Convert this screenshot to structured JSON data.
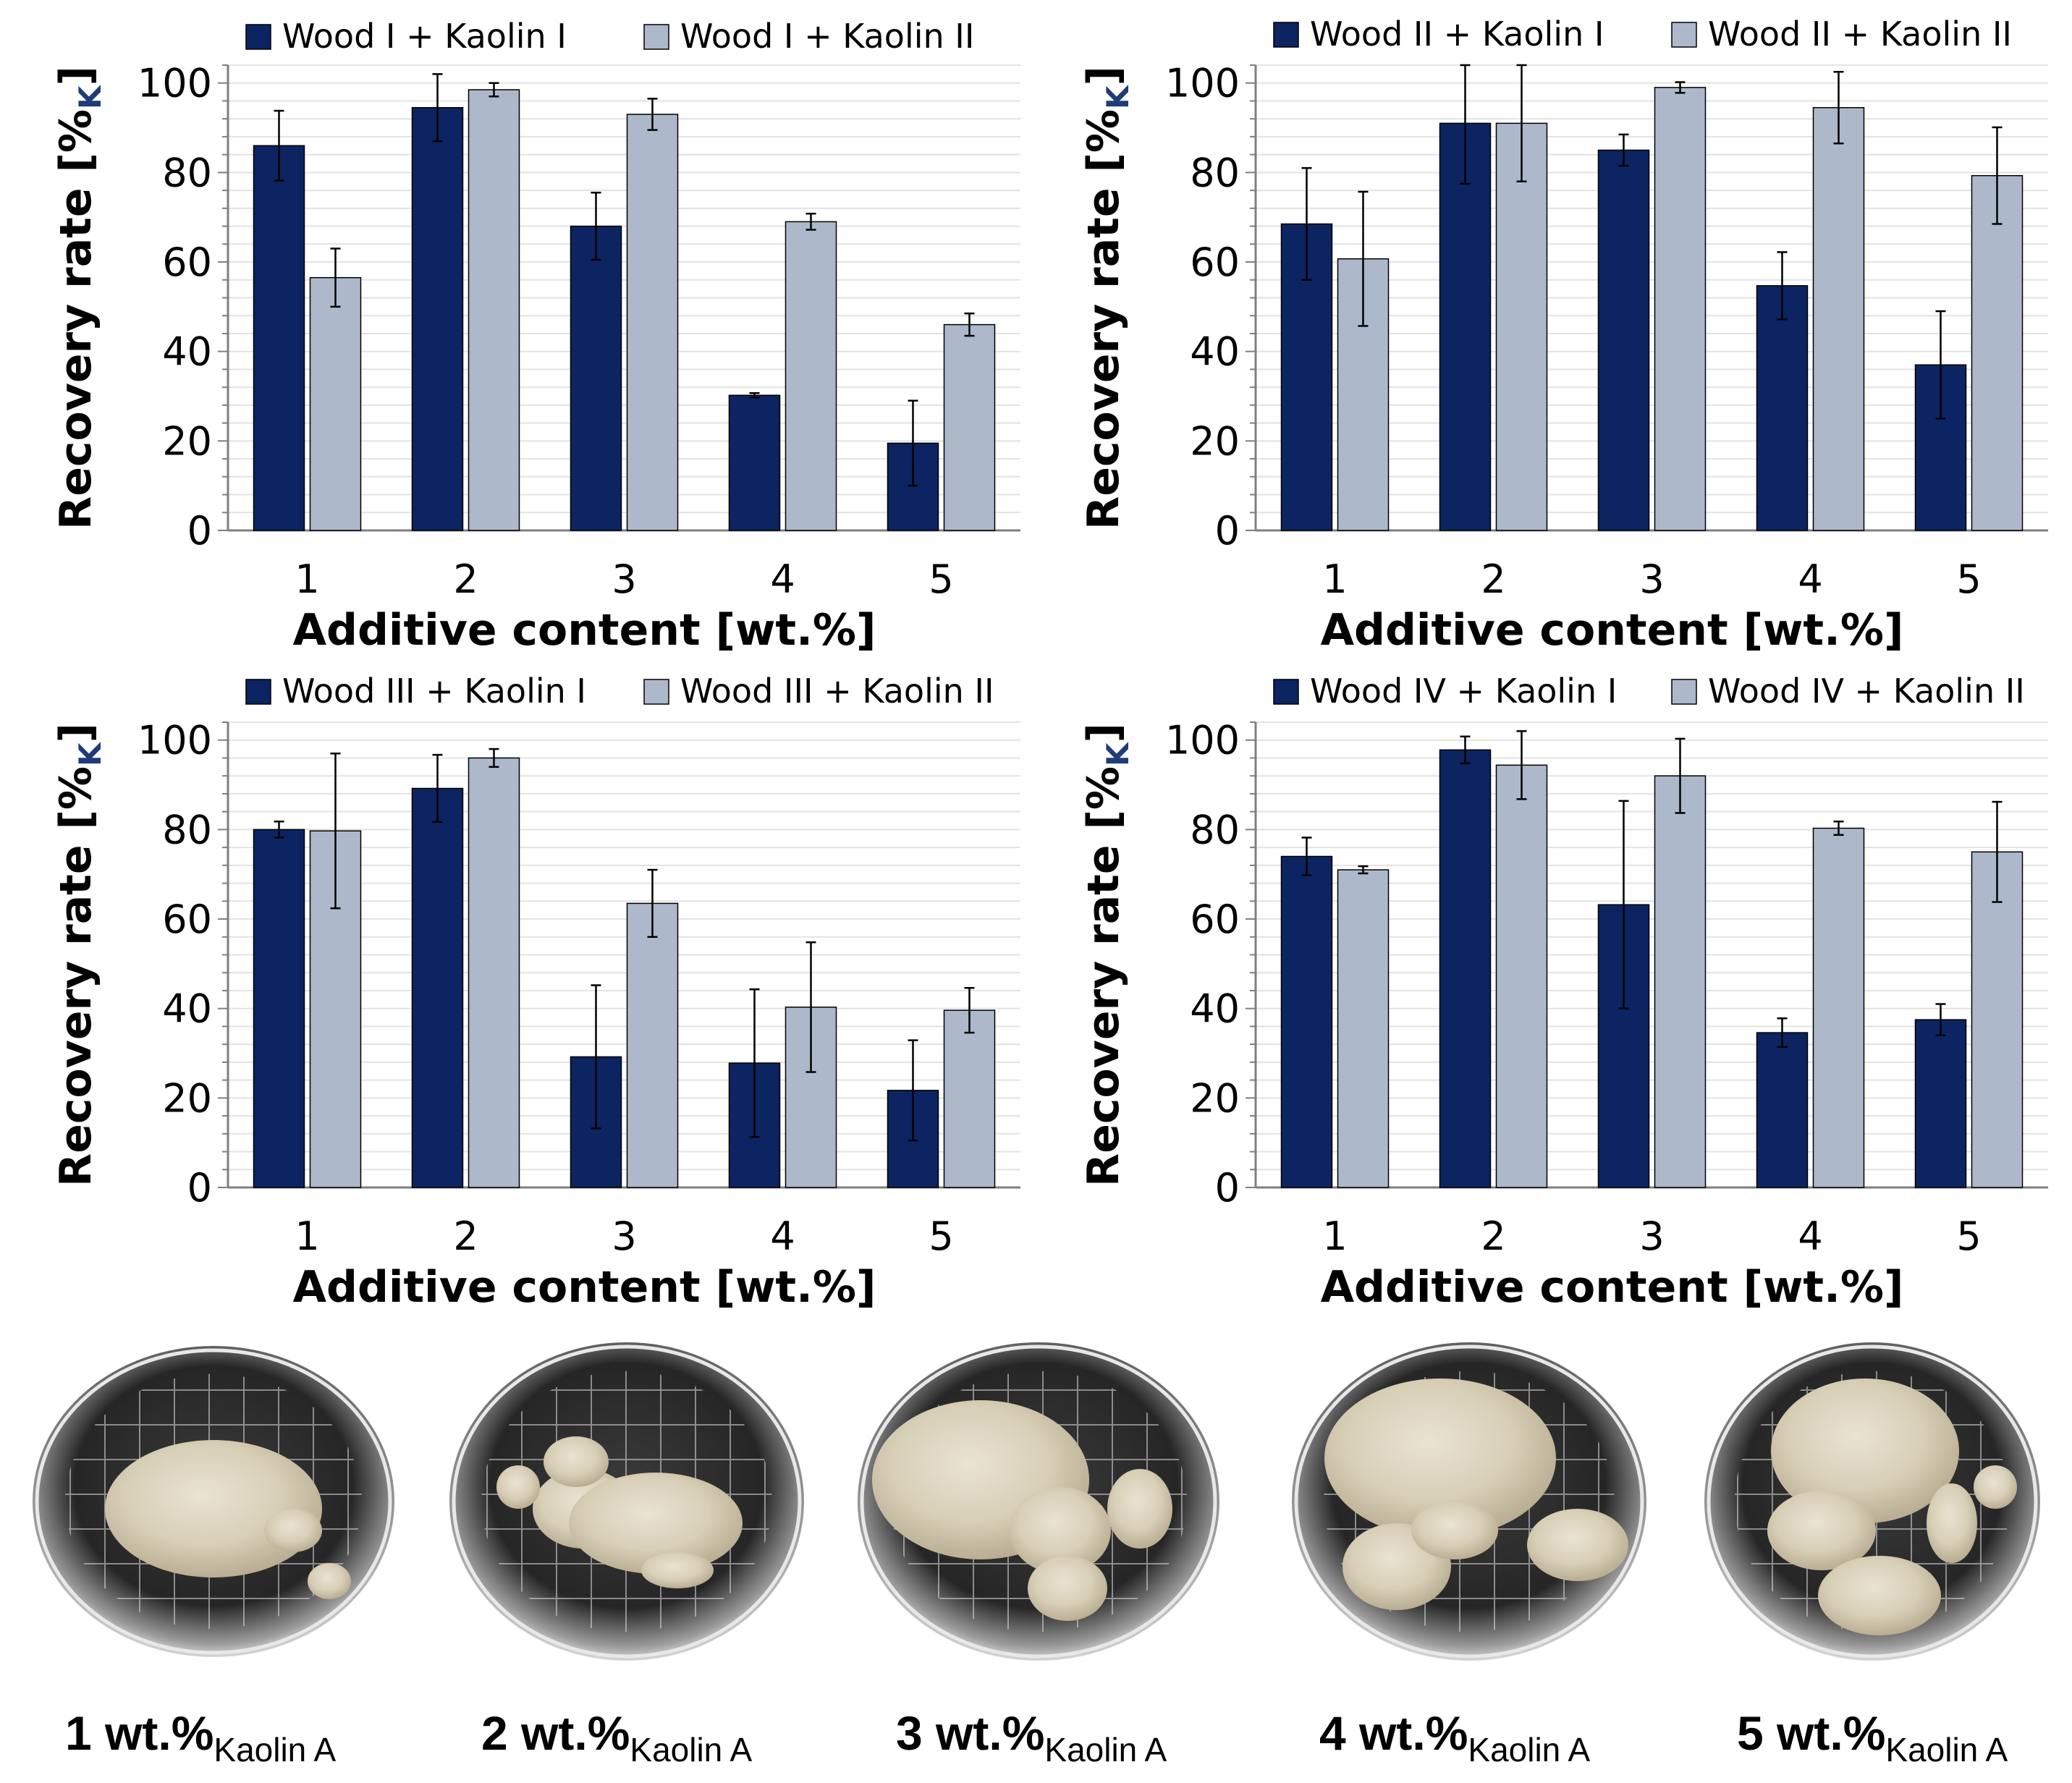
{
  "colors": {
    "series1": "#0c2461",
    "series2": "#adb9cb",
    "grid": "#e3e3e3",
    "axis": "#7f7f7f",
    "ylabel_sub": "#1f3c78"
  },
  "chart_data": [
    {
      "type": "bar",
      "categories": [
        "1",
        "2",
        "3",
        "4",
        "5"
      ],
      "xlabel": "Additive content [wt.%]",
      "ylabel": "Recovery rate [%",
      "ylabel_sub": "K",
      "ylabel_end": "]",
      "ylim": [
        0,
        100
      ],
      "yticks": [
        "0",
        "20",
        "40",
        "60",
        "80",
        "100"
      ],
      "legend_position": "top",
      "series": [
        {
          "name": "Wood I + Kaolin I",
          "values": [
            86,
            94.5,
            68,
            30.2,
            19.5
          ],
          "errors": [
            7.8,
            7.5,
            7.5,
            0.5,
            9.5
          ]
        },
        {
          "name": "Wood I + Kaolin II",
          "values": [
            56.5,
            98.5,
            93,
            69,
            46
          ],
          "errors": [
            6.5,
            1.5,
            3.5,
            1.8,
            2.5
          ]
        }
      ]
    },
    {
      "type": "bar",
      "categories": [
        "1",
        "2",
        "3",
        "4",
        "5"
      ],
      "xlabel": "Additive content [wt.%]",
      "ylabel": "Recovery rate [%",
      "ylabel_sub": "K",
      "ylabel_end": "]",
      "ylim": [
        0,
        100
      ],
      "yticks": [
        "0",
        "20",
        "40",
        "60",
        "80",
        "100"
      ],
      "legend_position": "top",
      "series": [
        {
          "name": "Wood II + Kaolin I",
          "values": [
            68.5,
            91,
            85,
            54.7,
            37
          ],
          "errors": [
            12.5,
            13.5,
            3.5,
            7.5,
            12
          ]
        },
        {
          "name": "Wood II + Kaolin II",
          "values": [
            60.7,
            91,
            99,
            94.5,
            79.3
          ],
          "errors": [
            15,
            13,
            1.2,
            8,
            10.8
          ]
        }
      ]
    },
    {
      "type": "bar",
      "categories": [
        "1",
        "2",
        "3",
        "4",
        "5"
      ],
      "xlabel": "Additive content [wt.%]",
      "ylabel": "Recovery rate [%",
      "ylabel_sub": "K",
      "ylabel_end": "]",
      "ylim": [
        0,
        100
      ],
      "yticks": [
        "0",
        "20",
        "40",
        "60",
        "80",
        "100"
      ],
      "legend_position": "top",
      "series": [
        {
          "name": "Wood III + Kaolin I",
          "values": [
            80,
            89.2,
            29.2,
            27.8,
            21.7
          ],
          "errors": [
            1.8,
            7.5,
            16,
            16.5,
            11.2
          ]
        },
        {
          "name": "Wood III + Kaolin II",
          "values": [
            79.7,
            96,
            63.5,
            40.3,
            39.6
          ],
          "errors": [
            17.3,
            2,
            7.5,
            14.5,
            5
          ]
        }
      ]
    },
    {
      "type": "bar",
      "categories": [
        "1",
        "2",
        "3",
        "4",
        "5"
      ],
      "xlabel": "Additive content [wt.%]",
      "ylabel": "Recovery rate [%",
      "ylabel_sub": "K",
      "ylabel_end": "]",
      "ylim": [
        0,
        100
      ],
      "yticks": [
        "0",
        "20",
        "40",
        "60",
        "80",
        "100"
      ],
      "legend_position": "top",
      "series": [
        {
          "name": "Wood IV + Kaolin I",
          "values": [
            74,
            97.8,
            63.2,
            34.6,
            37.5
          ],
          "errors": [
            4.2,
            3,
            23.2,
            3.2,
            3.5
          ]
        },
        {
          "name": "Wood IV + Kaolin II",
          "values": [
            71,
            94.4,
            92,
            80.3,
            75
          ],
          "errors": [
            0.8,
            7.6,
            8.3,
            1.5,
            11.2
          ]
        }
      ]
    }
  ],
  "photos": [
    {
      "caption": "1 wt.%",
      "caption_sub": "Kaolin A"
    },
    {
      "caption": "2 wt.%",
      "caption_sub": "Kaolin A"
    },
    {
      "caption": "3 wt.%",
      "caption_sub": "Kaolin A"
    },
    {
      "caption": "4 wt.%",
      "caption_sub": "Kaolin A"
    },
    {
      "caption": "5 wt.%",
      "caption_sub": "Kaolin A"
    }
  ]
}
